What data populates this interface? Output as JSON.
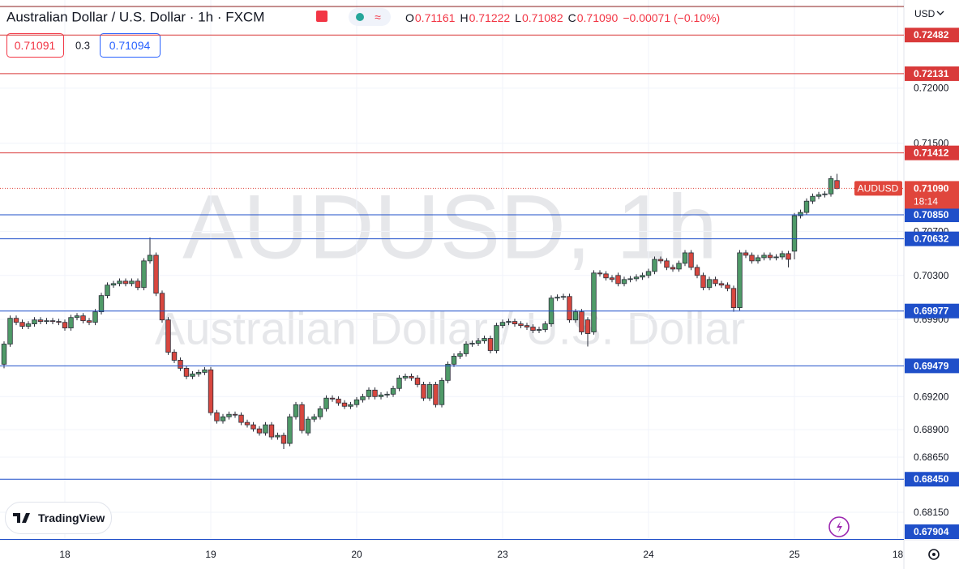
{
  "header": {
    "title": "Australian Dollar / U.S. Dollar · 1h · FXCM",
    "ohlc": [
      {
        "label": "O",
        "value": "0.71161"
      },
      {
        "label": "H",
        "value": "0.71222"
      },
      {
        "label": "L",
        "value": "0.71082"
      },
      {
        "label": "C",
        "value": "0.71090"
      }
    ],
    "change": "−0.00071 (−0.10%)",
    "bid": "0.71091",
    "spread": "0.3",
    "ask": "0.71094",
    "currency": "USD"
  },
  "watermark": {
    "symbol": "AUDUSD, 1h",
    "name": "Australian Dollar / U.S. Dollar"
  },
  "brand": "TradingView",
  "chart_data": {
    "type": "candlestick",
    "up_color": "#4f9a68",
    "down_color": "#d8473f",
    "grid": true,
    "ylim": [
      0.679,
      0.728
    ],
    "yticks": [
      {
        "value": 0.72,
        "label": "0.72000"
      },
      {
        "value": 0.715,
        "label": "0.71500"
      },
      {
        "value": 0.707,
        "label": "0.70700"
      },
      {
        "value": 0.703,
        "label": "0.70300"
      },
      {
        "value": 0.699,
        "label": "0.69900"
      },
      {
        "value": 0.692,
        "label": "0.69200"
      },
      {
        "value": 0.689,
        "label": "0.68900"
      },
      {
        "value": 0.6865,
        "label": "0.68650"
      },
      {
        "value": 0.6815,
        "label": "0.68150"
      }
    ],
    "levels": [
      {
        "value": 0.72482,
        "color": "#d93a3a"
      },
      {
        "value": 0.72131,
        "color": "#d93a3a"
      },
      {
        "value": 0.71412,
        "color": "#d93a3a"
      },
      {
        "value": 0.7085,
        "label": "0.70850",
        "color": "#1f4fc9"
      },
      {
        "value": 0.70632,
        "color": "#1f4fc9"
      },
      {
        "value": 0.69977,
        "color": "#1f4fc9"
      },
      {
        "value": 0.69479,
        "color": "#1f4fc9"
      },
      {
        "value": 0.6845,
        "label": "0.68450",
        "color": "#1f4fc9"
      },
      {
        "value": 0.67904,
        "color": "#1f4fc9"
      }
    ],
    "last": {
      "symbol": "AUDUSD",
      "price": {
        "value": 0.7109,
        "label": "0.71090"
      },
      "countdown": "18:14",
      "color": "#e0463c"
    },
    "categories": [
      null,
      null,
      null,
      null,
      null,
      null,
      null,
      null,
      null,
      null,
      "18",
      null,
      null,
      null,
      null,
      null,
      null,
      null,
      null,
      null,
      null,
      null,
      null,
      null,
      null,
      null,
      null,
      null,
      null,
      null,
      null,
      null,
      null,
      null,
      "19",
      null,
      null,
      null,
      null,
      null,
      null,
      null,
      null,
      null,
      null,
      null,
      null,
      null,
      null,
      null,
      null,
      null,
      null,
      null,
      null,
      null,
      null,
      null,
      "20",
      null,
      null,
      null,
      null,
      null,
      null,
      null,
      null,
      null,
      null,
      null,
      null,
      null,
      null,
      null,
      null,
      null,
      null,
      null,
      null,
      null,
      null,
      null,
      "23",
      null,
      null,
      null,
      null,
      null,
      null,
      null,
      null,
      null,
      null,
      null,
      null,
      null,
      null,
      null,
      null,
      null,
      null,
      null,
      null,
      null,
      null,
      null,
      "24",
      null,
      null,
      null,
      null,
      null,
      null,
      null,
      null,
      null,
      null,
      null,
      null,
      null,
      null,
      null,
      null,
      null,
      null,
      null,
      null,
      null,
      null,
      null,
      "25",
      null,
      null,
      null,
      null,
      null,
      null,
      null,
      null,
      null,
      null,
      null,
      null,
      null,
      null,
      null,
      null,
      "18"
    ],
    "open": [
      0.69494,
      0.69677,
      0.69911,
      0.69874,
      0.69838,
      0.6986,
      0.69896,
      0.69882,
      0.69889,
      0.69882,
      0.69874,
      0.69823,
      0.69918,
      0.69933,
      0.69889,
      0.69874,
      0.6997,
      0.70117,
      0.70212,
      0.70226,
      0.70248,
      0.70226,
      0.70248,
      0.7019,
      0.70432,
      0.70483,
      0.70138,
      0.69896,
      0.69603,
      0.6953,
      0.69457,
      0.69384,
      0.69406,
      0.6942,
      0.69443,
      0.69054,
      0.6898,
      0.69017,
      0.69039,
      0.69032,
      0.68966,
      0.68944,
      0.68907,
      0.6887,
      0.68944,
      0.68834,
      0.68848,
      0.68775,
      0.69017,
      0.69127,
      0.6887,
      0.68995,
      0.69017,
      0.6909,
      0.69186,
      0.69178,
      0.69142,
      0.69112,
      0.69127,
      0.69171,
      0.692,
      0.69259,
      0.692,
      0.69215,
      0.69222,
      0.69274,
      0.69369,
      0.69384,
      0.69369,
      0.6931,
      0.69186,
      0.6931,
      0.69127,
      0.69347,
      0.69494,
      0.69567,
      0.69589,
      0.69677,
      0.69684,
      0.69706,
      0.69728,
      0.69618,
      0.69845,
      0.69874,
      0.69882,
      0.6986,
      0.69845,
      0.69831,
      0.69801,
      0.69809,
      0.6986,
      0.70094,
      0.70102,
      0.70109,
      0.69896,
      0.6997,
      0.69896,
      0.69787,
      0.70322,
      0.70314,
      0.70278,
      0.703,
      0.70226,
      0.70263,
      0.7027,
      0.70285,
      0.703,
      0.70336,
      0.70446,
      0.70432,
      0.70373,
      0.70358,
      0.7041,
      0.70505,
      0.70373,
      0.703,
      0.7019,
      0.70263,
      0.70226,
      0.70212,
      0.70182,
      0.70007,
      0.70505,
      0.70483,
      0.70432,
      0.70461,
      0.70483,
      0.70461,
      0.70468,
      0.70498,
      0.7052,
      0.70842,
      0.70872,
      0.70974,
      0.71018,
      0.71033,
      0.7104,
      0.71161,
      null,
      null,
      null,
      null,
      null,
      null,
      null,
      null,
      null,
      null
    ],
    "high": [
      0.69702,
      0.69936,
      0.69936,
      0.69899,
      0.69885,
      0.69921,
      0.69921,
      0.69914,
      0.69914,
      0.69907,
      0.69899,
      0.69943,
      0.69958,
      0.69958,
      0.69914,
      0.69995,
      0.70142,
      0.70237,
      0.70251,
      0.70273,
      0.70273,
      0.70273,
      0.70273,
      0.70457,
      0.70644,
      0.70508,
      0.70163,
      0.69921,
      0.69628,
      0.69555,
      0.69482,
      0.69431,
      0.69445,
      0.69468,
      0.69468,
      0.69079,
      0.69042,
      0.69064,
      0.69064,
      0.69057,
      0.68991,
      0.68969,
      0.68932,
      0.68969,
      0.68969,
      0.68873,
      0.68873,
      0.69042,
      0.69152,
      0.69152,
      0.6902,
      0.69042,
      0.69115,
      0.69211,
      0.69211,
      0.69203,
      0.69167,
      0.69152,
      0.69196,
      0.69225,
      0.69284,
      0.69284,
      0.6924,
      0.69247,
      0.69299,
      0.69394,
      0.69409,
      0.69409,
      0.69394,
      0.69335,
      0.69335,
      0.69335,
      0.69372,
      0.69519,
      0.69592,
      0.69614,
      0.69702,
      0.69709,
      0.69731,
      0.69753,
      0.69753,
      0.6987,
      0.69899,
      0.69907,
      0.69907,
      0.69885,
      0.6987,
      0.69856,
      0.69834,
      0.69885,
      0.70119,
      0.70127,
      0.70134,
      0.70134,
      0.69995,
      0.69995,
      0.69921,
      0.70347,
      0.70347,
      0.70339,
      0.70303,
      0.70325,
      0.70288,
      0.70295,
      0.7031,
      0.70325,
      0.70361,
      0.70471,
      0.70471,
      0.70457,
      0.70398,
      0.70435,
      0.7053,
      0.7053,
      0.70398,
      0.70325,
      0.70288,
      0.70288,
      0.70251,
      0.70237,
      0.70207,
      0.7053,
      0.7053,
      0.70508,
      0.70486,
      0.70508,
      0.70508,
      0.70493,
      0.70523,
      0.70523,
      0.70867,
      0.70897,
      0.70999,
      0.71043,
      0.71058,
      0.71065,
      0.71204,
      0.71222,
      null,
      null,
      null,
      null,
      null,
      null,
      null,
      null,
      null,
      null
    ],
    "low": [
      0.69457,
      0.69652,
      0.69849,
      0.69813,
      0.69813,
      0.69835,
      0.69857,
      0.69857,
      0.69857,
      0.69849,
      0.69798,
      0.69798,
      0.69893,
      0.69864,
      0.69849,
      0.69849,
      0.69945,
      0.70092,
      0.70187,
      0.70201,
      0.70201,
      0.70201,
      0.70165,
      0.70165,
      0.70407,
      0.70113,
      0.69871,
      0.69578,
      0.69505,
      0.69432,
      0.69359,
      0.69359,
      0.69381,
      0.69395,
      0.69029,
      0.68955,
      0.68955,
      0.68992,
      0.69007,
      0.68941,
      0.68919,
      0.68882,
      0.68845,
      0.68845,
      0.68809,
      0.68809,
      0.68724,
      0.6875,
      0.68992,
      0.68867,
      0.68845,
      0.6897,
      0.68992,
      0.69065,
      0.69153,
      0.69117,
      0.69087,
      0.69087,
      0.69102,
      0.69146,
      0.69175,
      0.69175,
      0.69175,
      0.6919,
      0.69197,
      0.69249,
      0.69344,
      0.69344,
      0.69285,
      0.69161,
      0.69161,
      0.69102,
      0.69102,
      0.69322,
      0.69469,
      0.69542,
      0.69564,
      0.69652,
      0.69659,
      0.69681,
      0.69593,
      0.69593,
      0.6982,
      0.69849,
      0.69835,
      0.6982,
      0.69806,
      0.69776,
      0.69776,
      0.69784,
      0.69835,
      0.70069,
      0.70077,
      0.69871,
      0.69871,
      0.69762,
      0.69655,
      0.69762,
      0.70289,
      0.70253,
      0.70238,
      0.70201,
      0.70201,
      0.70238,
      0.70245,
      0.7026,
      0.70275,
      0.70311,
      0.70407,
      0.70348,
      0.70333,
      0.70333,
      0.70385,
      0.70348,
      0.70275,
      0.70165,
      0.70165,
      0.70201,
      0.70187,
      0.70157,
      0.6997,
      0.69982,
      0.70458,
      0.70407,
      0.70407,
      0.70436,
      0.70436,
      0.70436,
      0.70443,
      0.70373,
      0.70446,
      0.70817,
      0.70847,
      0.70949,
      0.70993,
      0.71008,
      0.71015,
      0.71082,
      null,
      null,
      null,
      null,
      null,
      null,
      null,
      null,
      null,
      null
    ],
    "close": [
      0.69677,
      0.69911,
      0.69874,
      0.69838,
      0.6986,
      0.69896,
      0.69882,
      0.69889,
      0.69882,
      0.69874,
      0.69823,
      0.69918,
      0.69933,
      0.69889,
      0.69874,
      0.6997,
      0.70117,
      0.70212,
      0.70226,
      0.70248,
      0.70226,
      0.70248,
      0.7019,
      0.70432,
      0.70483,
      0.70138,
      0.69896,
      0.69603,
      0.6953,
      0.69457,
      0.69384,
      0.69406,
      0.6942,
      0.69443,
      0.69054,
      0.6898,
      0.69017,
      0.69039,
      0.69032,
      0.68966,
      0.68944,
      0.68907,
      0.6887,
      0.68944,
      0.68834,
      0.68848,
      0.68775,
      0.69017,
      0.69127,
      0.68892,
      0.68995,
      0.69017,
      0.6909,
      0.69186,
      0.69178,
      0.69142,
      0.69112,
      0.69127,
      0.69171,
      0.692,
      0.69259,
      0.692,
      0.69215,
      0.69222,
      0.69274,
      0.69369,
      0.69384,
      0.69369,
      0.6931,
      0.69186,
      0.6931,
      0.69127,
      0.69347,
      0.69494,
      0.69567,
      0.69589,
      0.69677,
      0.69684,
      0.69706,
      0.69728,
      0.69618,
      0.69845,
      0.69874,
      0.69882,
      0.6986,
      0.69845,
      0.69831,
      0.69801,
      0.69809,
      0.6986,
      0.70094,
      0.70102,
      0.70109,
      0.69896,
      0.6997,
      0.69787,
      0.69772,
      0.70322,
      0.70314,
      0.70278,
      0.70263,
      0.70226,
      0.70263,
      0.7027,
      0.70285,
      0.703,
      0.70336,
      0.70446,
      0.70432,
      0.70373,
      0.70358,
      0.7041,
      0.70505,
      0.70373,
      0.703,
      0.7019,
      0.70263,
      0.70226,
      0.70212,
      0.70182,
      0.70007,
      0.70505,
      0.70483,
      0.70432,
      0.70461,
      0.70483,
      0.70461,
      0.70468,
      0.70498,
      0.70446,
      0.70842,
      0.70872,
      0.70974,
      0.71018,
      0.71033,
      0.7104,
      0.71179,
      0.7109,
      null,
      null,
      null,
      null,
      null,
      null,
      null,
      null,
      null,
      null
    ]
  }
}
